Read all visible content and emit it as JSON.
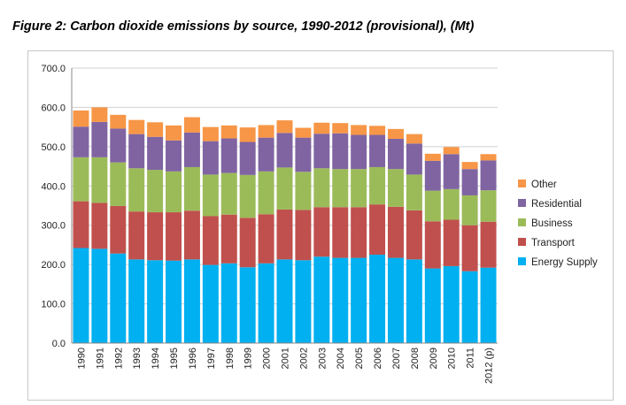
{
  "figure": {
    "title": "Figure 2: Carbon dioxide emissions by source, 1990-2012 (provisional), (Mt)"
  },
  "chart_data": {
    "type": "bar",
    "stacked": true,
    "categories": [
      "1990",
      "1991",
      "1992",
      "1993",
      "1994",
      "1995",
      "1996",
      "1997",
      "1998",
      "1999",
      "2000",
      "2001",
      "2002",
      "2003",
      "2004",
      "2005",
      "2006",
      "2007",
      "2008",
      "2009",
      "2010",
      "2011",
      "2012 (p)"
    ],
    "series": [
      {
        "name": "Energy Supply",
        "color": "#00B0F0",
        "values": [
          242,
          240,
          228,
          213,
          211,
          210,
          213,
          199,
          203,
          193,
          203,
          213,
          211,
          220,
          217,
          217,
          225,
          217,
          213,
          190,
          196,
          183,
          192
        ]
      },
      {
        "name": "Transport",
        "color": "#C0504D",
        "values": [
          119,
          117,
          121,
          122,
          122,
          123,
          124,
          124,
          124,
          126,
          125,
          127,
          128,
          126,
          129,
          129,
          128,
          130,
          125,
          120,
          118,
          117,
          117
        ]
      },
      {
        "name": "Business",
        "color": "#9BBB59",
        "values": [
          112,
          116,
          111,
          110,
          108,
          104,
          111,
          106,
          106,
          109,
          109,
          107,
          97,
          99,
          97,
          97,
          95,
          96,
          91,
          78,
          78,
          76,
          80
        ]
      },
      {
        "name": "Residential",
        "color": "#8064A2",
        "values": [
          78,
          90,
          86,
          87,
          84,
          79,
          88,
          85,
          88,
          84,
          86,
          88,
          87,
          88,
          91,
          87,
          82,
          77,
          79,
          76,
          89,
          67,
          76
        ]
      },
      {
        "name": "Other",
        "color": "#F79646",
        "values": [
          41,
          37,
          35,
          36,
          37,
          38,
          39,
          36,
          33,
          37,
          32,
          32,
          25,
          28,
          26,
          25,
          23,
          25,
          24,
          18,
          18,
          18,
          16
        ]
      }
    ],
    "yticks": [
      "0.0",
      "100.0",
      "200.0",
      "300.0",
      "400.0",
      "500.0",
      "600.0",
      "700.0"
    ],
    "ylim": [
      0,
      700
    ],
    "grid": "horizontal",
    "legend_position": "right",
    "legend_order": [
      "Other",
      "Residential",
      "Business",
      "Transport",
      "Energy Supply"
    ]
  }
}
